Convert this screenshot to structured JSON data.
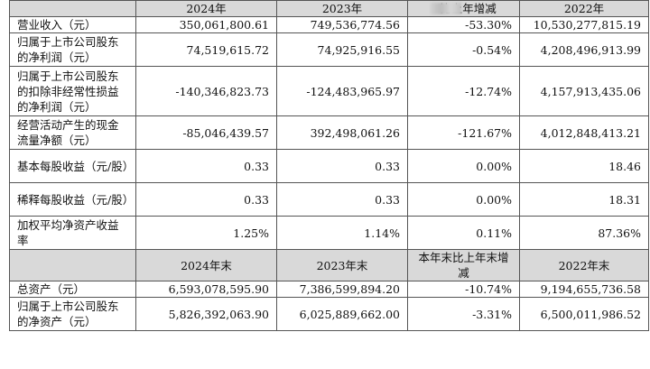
{
  "header1": {
    "col1": "2024年",
    "col2": "2023年",
    "col3": "比上年增减",
    "col4": "2022年"
  },
  "rows1": [
    {
      "label": "营业收入（元）",
      "v2024": "350,061,800.61",
      "v2023": "749,536,774.56",
      "change": "-53.30%",
      "v2022": "10,530,277,815.19"
    },
    {
      "label": "归属于上市公司股东的净利润（元）",
      "v2024": "74,519,615.72",
      "v2023": "74,925,916.55",
      "change": "-0.54%",
      "v2022": "4,208,496,913.99"
    },
    {
      "label": "归属于上市公司股东的扣除非经常性损益的净利润（元）",
      "v2024": "-140,346,823.73",
      "v2023": "-124,483,965.97",
      "change": "-12.74%",
      "v2022": "4,157,913,435.06"
    },
    {
      "label": "经营活动产生的现金流量净额（元）",
      "v2024": "-85,046,439.57",
      "v2023": "392,498,061.26",
      "change": "-121.67%",
      "v2022": "4,012,848,413.21"
    },
    {
      "label": "基本每股收益（元/股）",
      "v2024": "0.33",
      "v2023": "0.33",
      "change": "0.00%",
      "v2022": "18.46"
    },
    {
      "label": "稀释每股收益（元/股）",
      "v2024": "0.33",
      "v2023": "0.33",
      "change": "0.00%",
      "v2022": "18.31"
    },
    {
      "label": "加权平均净资产收益率",
      "v2024": "1.25%",
      "v2023": "1.14%",
      "change": "0.11%",
      "v2022": "87.36%"
    }
  ],
  "header2": {
    "col1": "2024年末",
    "col2": "2023年末",
    "col3": "本年末比上年末增减",
    "col4": "2022年末"
  },
  "rows2": [
    {
      "label": "总资产（元）",
      "v2024": "6,593,078,595.90",
      "v2023": "7,386,599,894.20",
      "change": "-10.74%",
      "v2022": "9,194,655,736.58"
    },
    {
      "label": "归属于上市公司股东的净资产（元）",
      "v2024": "5,826,392,063.90",
      "v2023": "6,025,889,662.00",
      "change": "-3.31%",
      "v2022": "6,500,011,986.52"
    }
  ]
}
